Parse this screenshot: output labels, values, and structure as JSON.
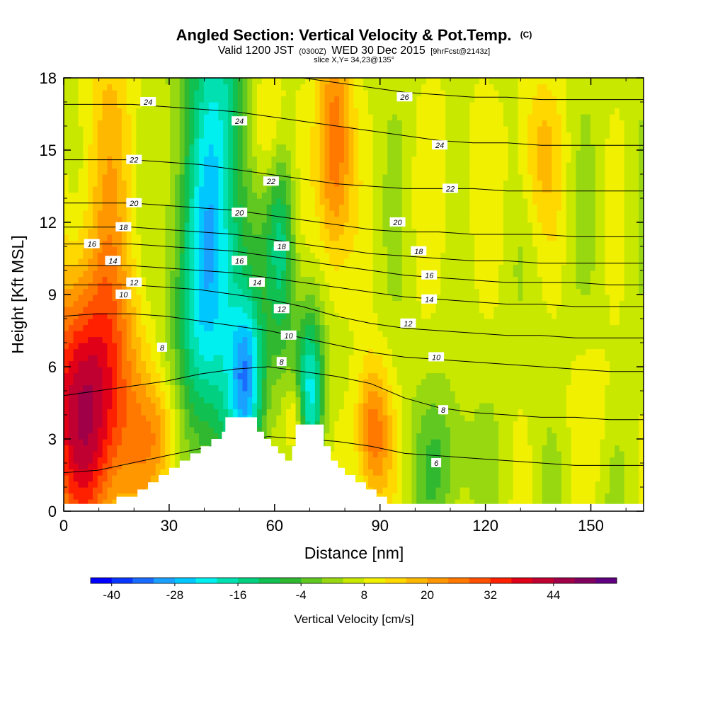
{
  "chart_data": {
    "type": "heatmap",
    "title": "Angled Section: Vertical Velocity & Pot.Temp.",
    "title_unit": "(C)",
    "subtitle_parts": [
      "Valid 1200 JST",
      "(0300Z)",
      "WED 30 Dec 2015",
      "[9hrFcst@2143z]"
    ],
    "slice_label": "slice X,Y= 34,23@135°",
    "xlabel": "Distance [nm]",
    "ylabel": "Height [Kft MSL]",
    "xlim": [
      0,
      165
    ],
    "ylim": [
      0,
      18
    ],
    "xticks": [
      0,
      30,
      60,
      90,
      120,
      150
    ],
    "yticks": [
      0,
      3,
      6,
      9,
      12,
      15,
      18
    ],
    "grid": false,
    "colorbar": {
      "title": "Vertical Velocity [cm/s]",
      "min": -44,
      "step": 4,
      "colors": [
        "#0000ff",
        "#0a37ff",
        "#1a6cff",
        "#1aa0ff",
        "#00c8ff",
        "#00f0f0",
        "#00e0b0",
        "#00d080",
        "#10c050",
        "#30b830",
        "#60c820",
        "#98d810",
        "#c8e800",
        "#f0f000",
        "#ffd800",
        "#ffb800",
        "#ff9800",
        "#ff7800",
        "#ff5000",
        "#ff2000",
        "#e00018",
        "#c00030",
        "#a00048",
        "#800060",
        "#600080"
      ],
      "tick_labels": [
        -40,
        -28,
        -16,
        -4,
        8,
        20,
        32,
        44
      ]
    },
    "terrain": [
      [
        0,
        0.3
      ],
      [
        10,
        0.3
      ],
      [
        15,
        0.6
      ],
      [
        18,
        0.6
      ],
      [
        21,
        0.9
      ],
      [
        24,
        1.2
      ],
      [
        27,
        1.5
      ],
      [
        30,
        1.8
      ],
      [
        33,
        2.1
      ],
      [
        36,
        2.4
      ],
      [
        39,
        2.7
      ],
      [
        42,
        3.0
      ],
      [
        45,
        3.3
      ],
      [
        46,
        3.9
      ],
      [
        53,
        3.9
      ],
      [
        55,
        3.3
      ],
      [
        57,
        3.0
      ],
      [
        59,
        2.7
      ],
      [
        61,
        2.4
      ],
      [
        63,
        2.1
      ],
      [
        65,
        2.7
      ],
      [
        66,
        3.6
      ],
      [
        72,
        3.6
      ],
      [
        74,
        2.7
      ],
      [
        76,
        2.1
      ],
      [
        78,
        1.8
      ],
      [
        80,
        1.5
      ],
      [
        83,
        1.2
      ],
      [
        86,
        0.9
      ],
      [
        89,
        0.6
      ],
      [
        92,
        0.3
      ],
      [
        165,
        0.3
      ]
    ],
    "velocity_features": [
      {
        "x": 6,
        "h": 4.2,
        "rx": 14,
        "rh": 5.5,
        "w": 36
      },
      {
        "x": 13,
        "h": 14,
        "rx": 9,
        "rh": 10,
        "w": 10
      },
      {
        "x": 44,
        "h": 14,
        "rx": 10,
        "rh": 11,
        "w": -26
      },
      {
        "x": 38,
        "h": 8,
        "rx": 8,
        "rh": 6,
        "w": -14
      },
      {
        "x": 52,
        "h": 5.5,
        "rx": 5,
        "rh": 3.5,
        "w": -30
      },
      {
        "x": 70,
        "h": 5.0,
        "rx": 4,
        "rh": 3.5,
        "w": -28
      },
      {
        "x": 62,
        "h": 11,
        "rx": 4,
        "rh": 5,
        "w": -18
      },
      {
        "x": 77,
        "h": 15,
        "rx": 5,
        "rh": 5,
        "w": 24
      },
      {
        "x": 58,
        "h": 16,
        "rx": 6,
        "rh": 3,
        "w": 14
      },
      {
        "x": 88,
        "h": 3.2,
        "rx": 5,
        "rh": 3,
        "w": 22
      },
      {
        "x": 28,
        "h": 3.0,
        "rx": 7,
        "rh": 2.5,
        "w": 14
      },
      {
        "x": 66,
        "h": 3.8,
        "rx": 3,
        "rh": 1.8,
        "w": 14
      },
      {
        "x": 112,
        "h": 14,
        "rx": 10,
        "rh": 5,
        "w": 4
      },
      {
        "x": 135,
        "h": 15,
        "rx": 7,
        "rh": 3.5,
        "w": 10
      },
      {
        "x": 108,
        "h": 2.0,
        "rx": 8,
        "rh": 3,
        "w": -10
      },
      {
        "x": 150,
        "h": 4.5,
        "rx": 8,
        "rh": 3,
        "w": 4
      }
    ],
    "contours": [
      {
        "theta": 6,
        "h": [
          1.6,
          1.7,
          2.0,
          2.3,
          2.6,
          2.9,
          3.1,
          3.0,
          2.9,
          2.7,
          2.4,
          2.3,
          2.2,
          2.1,
          2.0,
          1.9,
          1.9,
          1.9
        ]
      },
      {
        "theta": 8,
        "h": [
          4.8,
          5.0,
          5.2,
          5.4,
          5.7,
          5.9,
          6.0,
          5.8,
          5.6,
          5.3,
          4.7,
          4.3,
          4.1,
          4.0,
          3.9,
          3.9,
          3.8,
          3.8
        ]
      },
      {
        "theta": 10,
        "h": [
          8.1,
          8.2,
          8.2,
          8.1,
          7.9,
          7.7,
          7.5,
          7.2,
          6.9,
          6.6,
          6.4,
          6.3,
          6.2,
          6.1,
          6.0,
          5.9,
          5.8,
          5.8
        ]
      },
      {
        "theta": 12,
        "h": [
          9.4,
          9.4,
          9.4,
          9.3,
          9.2,
          9.0,
          8.8,
          8.5,
          8.1,
          7.8,
          7.6,
          7.5,
          7.4,
          7.3,
          7.3,
          7.2,
          7.2,
          7.2
        ]
      },
      {
        "theta": 14,
        "h": [
          10.2,
          10.2,
          10.2,
          10.1,
          10.0,
          9.9,
          9.7,
          9.5,
          9.3,
          9.1,
          8.9,
          8.8,
          8.7,
          8.6,
          8.6,
          8.5,
          8.5,
          8.5
        ]
      },
      {
        "theta": 16,
        "h": [
          11.1,
          11.1,
          11.1,
          11.0,
          10.9,
          10.8,
          10.6,
          10.4,
          10.2,
          10.0,
          9.8,
          9.7,
          9.6,
          9.5,
          9.5,
          9.5,
          9.4,
          9.4
        ]
      },
      {
        "theta": 18,
        "h": [
          11.8,
          11.8,
          11.8,
          11.7,
          11.6,
          11.5,
          11.3,
          11.1,
          10.9,
          10.7,
          10.6,
          10.5,
          10.4,
          10.4,
          10.3,
          10.3,
          10.3,
          10.3
        ]
      },
      {
        "theta": 20,
        "h": [
          12.8,
          12.8,
          12.8,
          12.7,
          12.6,
          12.5,
          12.3,
          12.1,
          11.9,
          11.7,
          11.6,
          11.6,
          11.5,
          11.5,
          11.5,
          11.4,
          11.4,
          11.4
        ]
      },
      {
        "theta": 22,
        "h": [
          14.6,
          14.6,
          14.6,
          14.5,
          14.4,
          14.2,
          14.0,
          13.8,
          13.6,
          13.5,
          13.4,
          13.4,
          13.4,
          13.3,
          13.3,
          13.3,
          13.3,
          13.3
        ]
      },
      {
        "theta": 24,
        "h": [
          16.9,
          16.9,
          16.9,
          16.8,
          16.7,
          16.6,
          16.4,
          16.2,
          16.0,
          15.8,
          15.6,
          15.4,
          15.3,
          15.3,
          15.2,
          15.2,
          15.2,
          15.2
        ]
      },
      {
        "theta": 26,
        "h": [
          18.5,
          18.5,
          18.5,
          18.5,
          18.4,
          18.3,
          18.2,
          18.0,
          17.8,
          17.6,
          17.4,
          17.3,
          17.2,
          17.2,
          17.1,
          17.1,
          17.1,
          17.1
        ]
      }
    ],
    "contour_labels": [
      {
        "text": "24",
        "x": 24,
        "y": 17.0
      },
      {
        "text": "22",
        "x": 20,
        "y": 14.6
      },
      {
        "text": "20",
        "x": 20,
        "y": 12.8
      },
      {
        "text": "18",
        "x": 17,
        "y": 11.8
      },
      {
        "text": "16",
        "x": 8,
        "y": 11.1
      },
      {
        "text": "14",
        "x": 14,
        "y": 10.4
      },
      {
        "text": "12",
        "x": 20,
        "y": 9.5
      },
      {
        "text": "10",
        "x": 17,
        "y": 9.0
      },
      {
        "text": "8",
        "x": 28,
        "y": 6.8
      },
      {
        "text": "24",
        "x": 50,
        "y": 16.2
      },
      {
        "text": "22",
        "x": 59,
        "y": 13.7
      },
      {
        "text": "20",
        "x": 50,
        "y": 12.4
      },
      {
        "text": "18",
        "x": 62,
        "y": 11.0
      },
      {
        "text": "16",
        "x": 50,
        "y": 10.4
      },
      {
        "text": "14",
        "x": 55,
        "y": 9.5
      },
      {
        "text": "12",
        "x": 62,
        "y": 8.4
      },
      {
        "text": "10",
        "x": 64,
        "y": 7.3
      },
      {
        "text": "8",
        "x": 62,
        "y": 6.2
      },
      {
        "text": "26",
        "x": 97,
        "y": 17.2
      },
      {
        "text": "24",
        "x": 107,
        "y": 15.2
      },
      {
        "text": "22",
        "x": 110,
        "y": 13.4
      },
      {
        "text": "20",
        "x": 95,
        "y": 12.0
      },
      {
        "text": "18",
        "x": 101,
        "y": 10.8
      },
      {
        "text": "16",
        "x": 104,
        "y": 9.8
      },
      {
        "text": "14",
        "x": 104,
        "y": 8.8
      },
      {
        "text": "12",
        "x": 98,
        "y": 7.8
      },
      {
        "text": "10",
        "x": 106,
        "y": 6.4
      },
      {
        "text": "8",
        "x": 108,
        "y": 4.2
      },
      {
        "text": "6",
        "x": 106,
        "y": 2.0
      }
    ]
  }
}
